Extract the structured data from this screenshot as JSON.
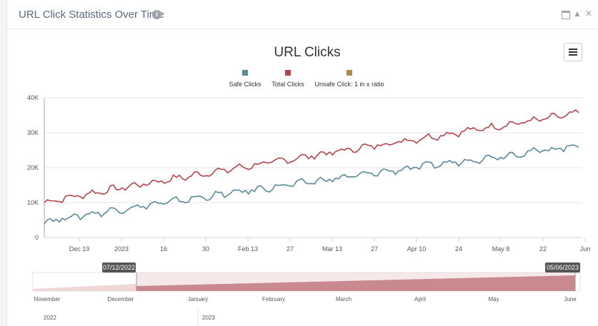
{
  "panel": {
    "title": "URL Click Statistics Over Time",
    "info_icon": "info-icon",
    "controls": [
      "maximize-icon",
      "collapse-icon",
      "close-icon"
    ]
  },
  "chart_data": {
    "type": "line",
    "title": "URL Clicks",
    "legend": [
      {
        "name": "Safe Clicks",
        "color": "#5b8a9a"
      },
      {
        "name": "Total Clicks",
        "color": "#b5434b"
      },
      {
        "name": "Unsafe Click: 1 in x ratio",
        "color": "#b08a4a"
      }
    ],
    "y_ticks": [
      "0",
      "10K",
      "20K",
      "30K",
      "40K"
    ],
    "ylim": [
      0,
      40000
    ],
    "x_ticks": [
      "Dec 19",
      "2023",
      "16",
      "30",
      "Feb 13",
      "27",
      "Mar 13",
      "27",
      "Apr 10",
      "24",
      "May 8",
      "22",
      "Jun"
    ],
    "date_range": [
      "2022-12-06",
      "2023-06-01"
    ],
    "series": [
      {
        "name": "Total Clicks",
        "start": 10000,
        "end": 35500
      },
      {
        "name": "Safe Clicks",
        "start": 4500,
        "end": 26300
      },
      {
        "name": "Unsafe Click: 1 in x ratio",
        "start": null,
        "end": null
      }
    ],
    "navigator": {
      "range_start_label": "07/12/2022",
      "range_end_label": "05/06/2023",
      "months": [
        "November",
        "December",
        "January",
        "February",
        "March",
        "April",
        "May",
        "June"
      ],
      "years": [
        "2022",
        "2023"
      ]
    }
  }
}
